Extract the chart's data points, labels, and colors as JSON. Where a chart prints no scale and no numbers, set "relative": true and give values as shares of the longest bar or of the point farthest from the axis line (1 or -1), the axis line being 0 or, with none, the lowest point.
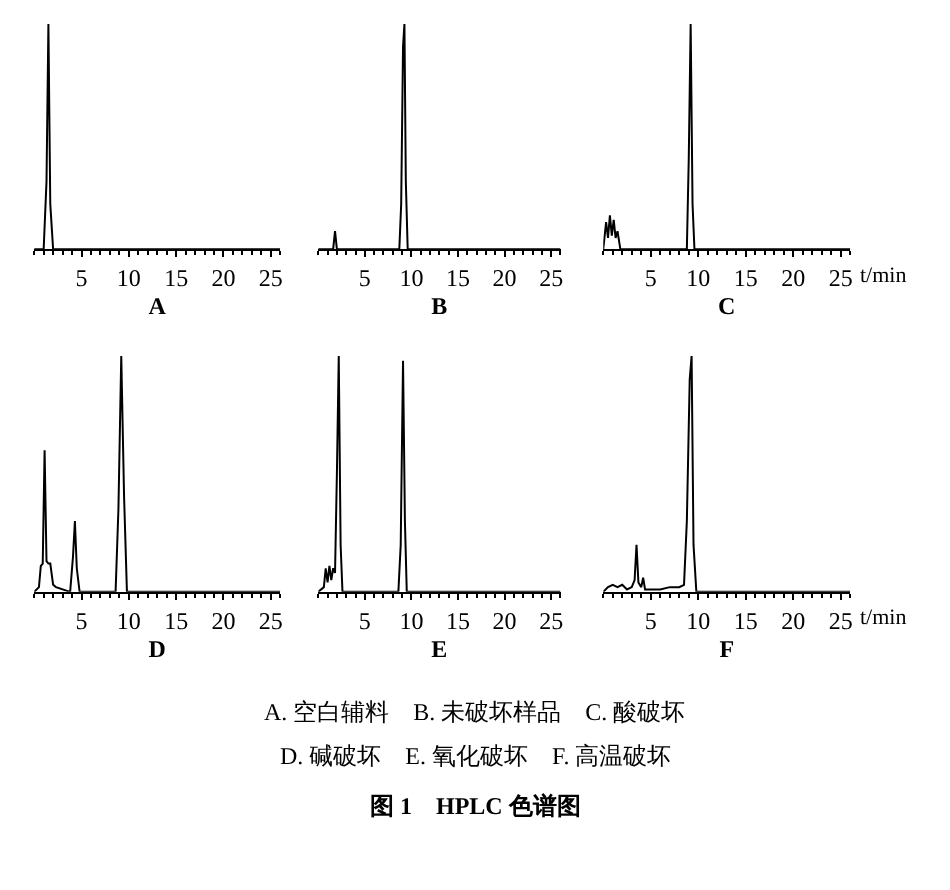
{
  "chart_data": [
    {
      "type": "line",
      "relative": true,
      "xlabel": "A",
      "xlim": [
        0,
        26
      ],
      "xticks": [
        5,
        10,
        15,
        20,
        25
      ],
      "marker": "none",
      "line_style": "solid",
      "x": [
        0,
        1.0,
        1.3,
        1.5,
        1.7,
        2.0,
        26
      ],
      "series": [
        {
          "color": "#000000",
          "values": [
            0,
            0,
            0.3,
            1,
            0.2,
            0,
            0
          ]
        }
      ]
    },
    {
      "type": "line",
      "relative": true,
      "xlabel": "B",
      "xlim": [
        0,
        26
      ],
      "xticks": [
        5,
        10,
        15,
        20,
        25
      ],
      "marker": "none",
      "line_style": "solid",
      "x": [
        0,
        1.6,
        1.8,
        2.0,
        8.7,
        8.9,
        9.1,
        9.25,
        9.4,
        9.6,
        26
      ],
      "series": [
        {
          "color": "#000000",
          "values": [
            0,
            0,
            0.08,
            0,
            0,
            0.2,
            0.9,
            1,
            0.3,
            0,
            0
          ]
        }
      ]
    },
    {
      "type": "line",
      "relative": true,
      "xlabel": "C",
      "xlim": [
        0,
        26
      ],
      "xticks": [
        5,
        10,
        15,
        20,
        25
      ],
      "marker": "none",
      "line_style": "solid",
      "annotations": [
        "t/min"
      ],
      "x": [
        0,
        0.3,
        0.5,
        0.7,
        0.9,
        1.1,
        1.3,
        1.5,
        1.8,
        8.8,
        9.0,
        9.2,
        9.4,
        9.6,
        26
      ],
      "series": [
        {
          "color": "#000000",
          "values": [
            0,
            0.12,
            0.05,
            0.15,
            0.06,
            0.13,
            0.05,
            0.08,
            0,
            0,
            0.4,
            1,
            0.2,
            0,
            0
          ]
        }
      ]
    },
    {
      "type": "line",
      "relative": true,
      "xlabel": "D",
      "xlim": [
        0,
        26
      ],
      "xticks": [
        5,
        10,
        15,
        20,
        25
      ],
      "marker": "none",
      "line_style": "solid",
      "x": [
        0,
        0.5,
        0.7,
        0.9,
        1.1,
        1.3,
        1.5,
        1.7,
        2.0,
        2.3,
        3.8,
        4.1,
        4.3,
        4.5,
        4.8,
        8.6,
        8.9,
        9.2,
        9.5,
        9.8,
        26
      ],
      "series": [
        {
          "color": "#000000",
          "values": [
            0,
            0.02,
            0.11,
            0.12,
            0.6,
            0.13,
            0.12,
            0.12,
            0.03,
            0.02,
            0,
            0.15,
            0.3,
            0.1,
            0,
            0,
            0.35,
            1,
            0.4,
            0,
            0
          ]
        }
      ]
    },
    {
      "type": "line",
      "relative": true,
      "xlabel": "E",
      "xlim": [
        0,
        26
      ],
      "xticks": [
        5,
        10,
        15,
        20,
        25
      ],
      "marker": "none",
      "line_style": "solid",
      "x": [
        0,
        0.6,
        0.8,
        1.0,
        1.2,
        1.4,
        1.6,
        1.8,
        2.0,
        2.2,
        2.4,
        2.6,
        8.6,
        8.85,
        9.1,
        9.3,
        9.5,
        26
      ],
      "series": [
        {
          "color": "#000000",
          "values": [
            0,
            0.02,
            0.1,
            0.04,
            0.11,
            0.05,
            0.1,
            0.08,
            0.5,
            1,
            0.2,
            0,
            0,
            0.2,
            0.98,
            0.3,
            0,
            0
          ]
        }
      ]
    },
    {
      "type": "line",
      "relative": true,
      "xlabel": "F",
      "xlim": [
        0,
        26
      ],
      "xticks": [
        5,
        10,
        15,
        20,
        25
      ],
      "marker": "none",
      "line_style": "solid",
      "annotations": [
        "t/min",
        "A. 空白辅料    B. 未破坏样品    C. 酸破坏",
        "D. 碱破坏    E. 氧化破坏    F. 高温破坏",
        "图 1    HPLC 色谱图"
      ],
      "x": [
        0,
        0.5,
        1.0,
        1.5,
        2.0,
        2.5,
        3.0,
        3.3,
        3.5,
        3.7,
        4.0,
        4.2,
        4.4,
        5,
        6,
        7,
        8,
        8.5,
        8.8,
        9.1,
        9.3,
        9.5,
        9.8,
        26
      ],
      "series": [
        {
          "color": "#000000",
          "values": [
            0,
            0.02,
            0.03,
            0.02,
            0.03,
            0.01,
            0.02,
            0.05,
            0.2,
            0.04,
            0.02,
            0.06,
            0.01,
            0.01,
            0.01,
            0.02,
            0.02,
            0.03,
            0.3,
            0.9,
            1,
            0.2,
            0,
            0
          ]
        }
      ]
    }
  ]
}
